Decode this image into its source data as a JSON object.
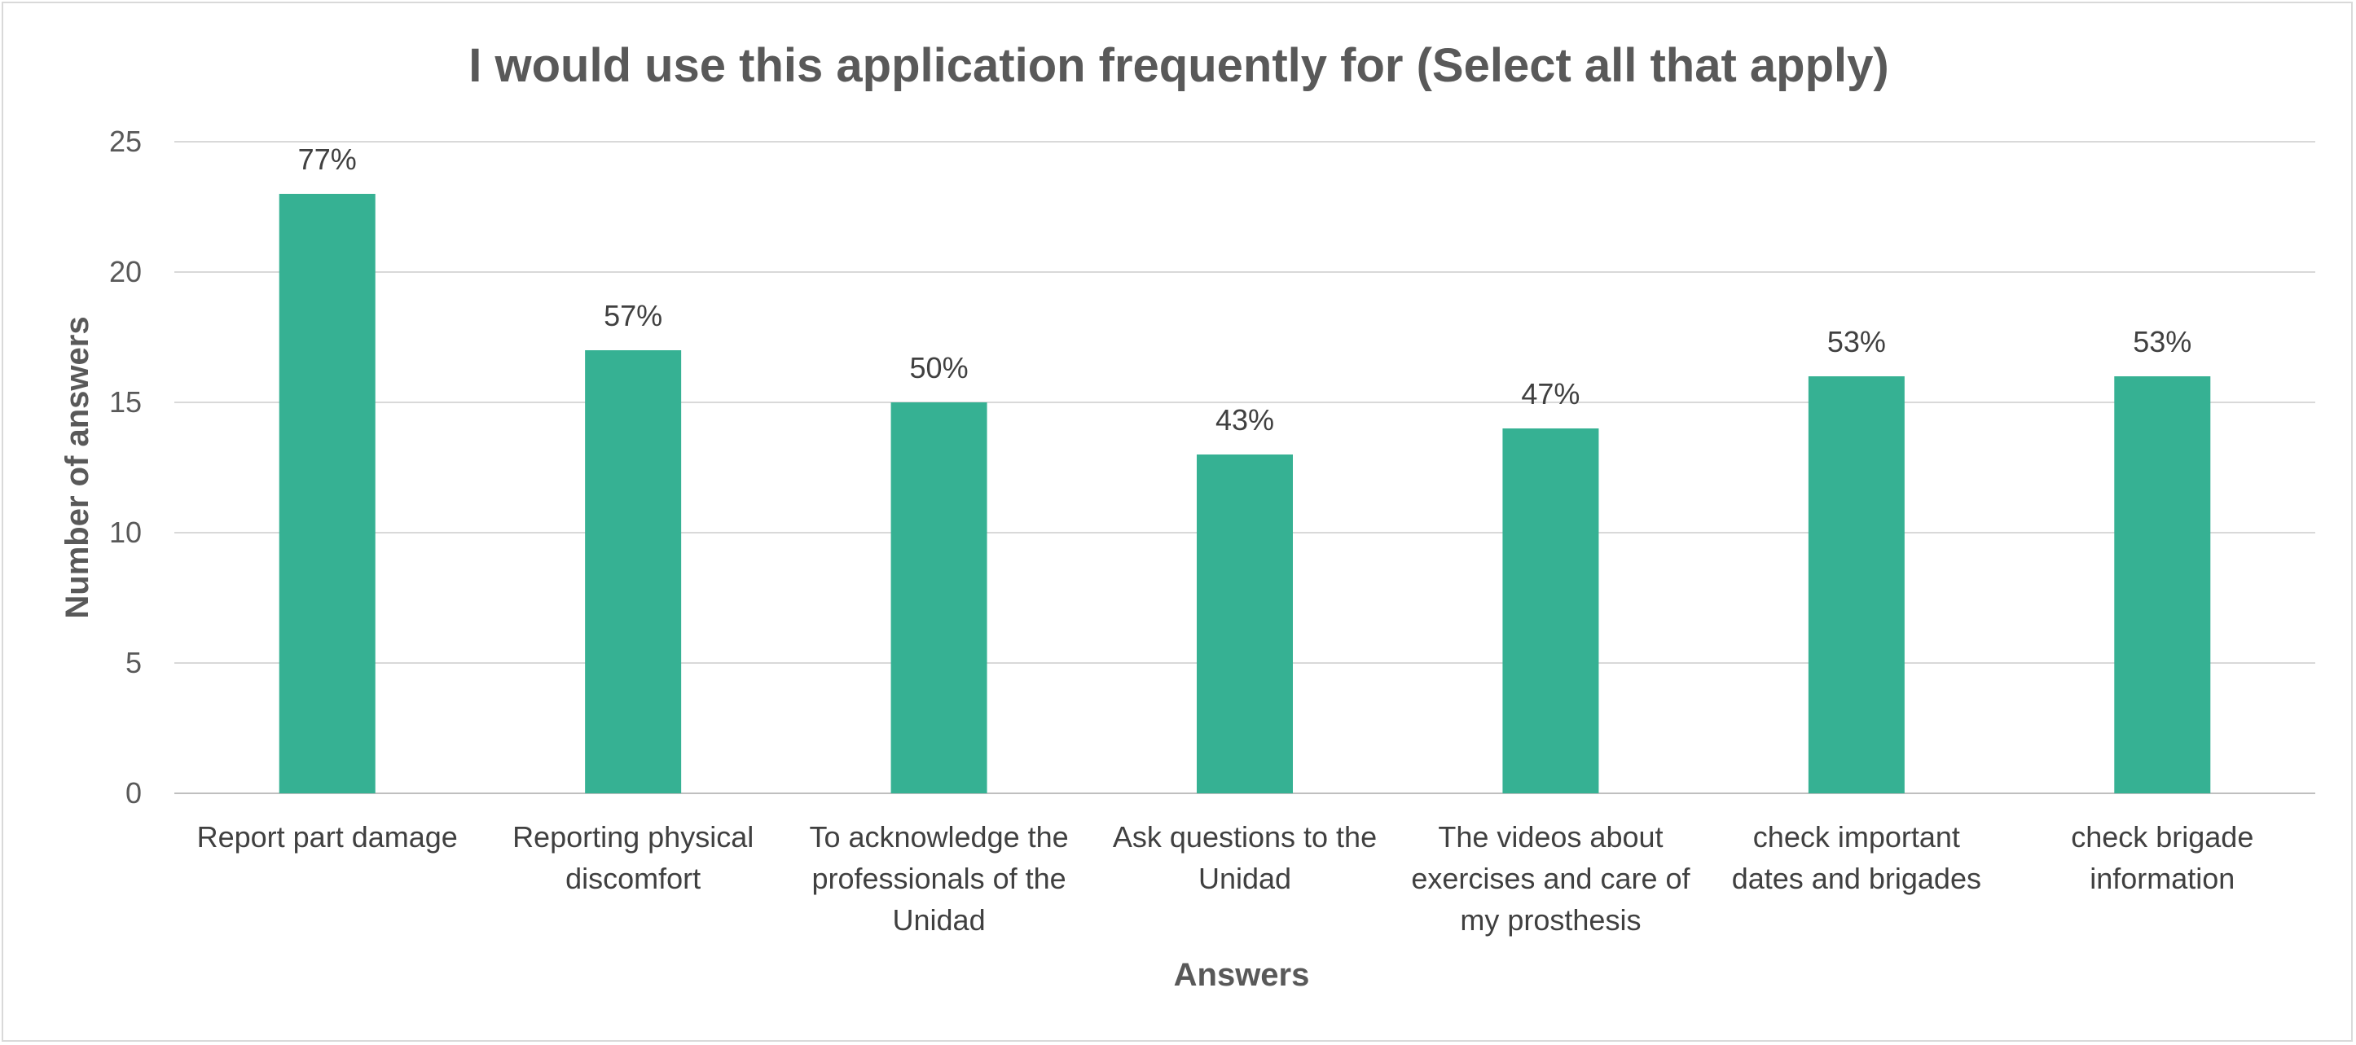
{
  "chart_data": {
    "type": "bar",
    "title": "I would use this application frequently for (Select all that apply)",
    "xlabel": "Answers",
    "ylabel": "Number of answers",
    "ylim": [
      0,
      25
    ],
    "yticks": [
      0,
      5,
      10,
      15,
      20,
      25
    ],
    "grid": true,
    "legend": "none",
    "bar_color": "#36B193",
    "categories": [
      [
        "Report part damage"
      ],
      [
        "Reporting physical",
        "discomfort"
      ],
      [
        "To acknowledge the",
        "professionals of the",
        "Unidad"
      ],
      [
        "Ask questions to the",
        "Unidad"
      ],
      [
        "The videos about",
        "exercises and care of",
        "my prosthesis"
      ],
      [
        "check important",
        "dates and brigades"
      ],
      [
        "check brigade",
        "information"
      ]
    ],
    "values": [
      23,
      17,
      15,
      13,
      14,
      16,
      16
    ],
    "data_labels": [
      "77%",
      "57%",
      "50%",
      "43%",
      "47%",
      "53%",
      "53%"
    ]
  }
}
